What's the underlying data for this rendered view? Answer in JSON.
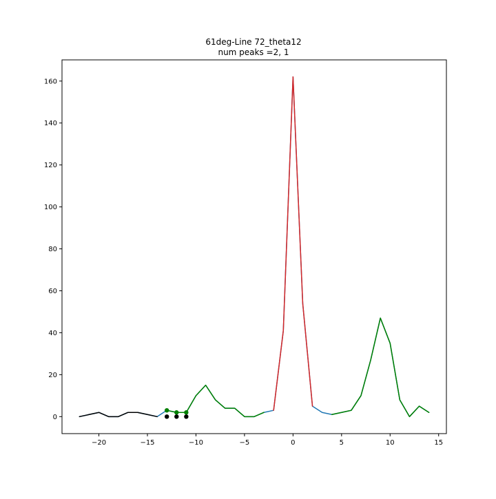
{
  "chart_data": {
    "type": "line",
    "title_lines": [
      "61deg-Line 72_theta12",
      "num peaks =2, 1"
    ],
    "xlabel": "",
    "ylabel": "",
    "xlim": [
      -23.8,
      15.8
    ],
    "ylim": [
      -8.1,
      170.1
    ],
    "x_ticks": [
      -20,
      -15,
      -10,
      -5,
      0,
      5,
      10,
      15
    ],
    "x_tick_labels": [
      "−20",
      "−15",
      "−10",
      "−5",
      "0",
      "5",
      "10",
      "15"
    ],
    "y_ticks": [
      0,
      20,
      40,
      60,
      80,
      100,
      120,
      140,
      160
    ],
    "y_tick_labels": [
      "0",
      "20",
      "40",
      "60",
      "80",
      "100",
      "120",
      "140",
      "160"
    ],
    "grid": false,
    "legend": "none",
    "series": [
      {
        "role": "full-signal",
        "color": "#1f77b4",
        "style": "line",
        "x": [
          -22,
          -21,
          -20,
          -19,
          -18,
          -17,
          -16,
          -15,
          -14,
          -13,
          -12,
          -11,
          -10,
          -9,
          -8,
          -7,
          -6,
          -5,
          -4,
          -3,
          -2,
          -1,
          0,
          1,
          2,
          3,
          4,
          5,
          6,
          7,
          8,
          9,
          10,
          11,
          12,
          13,
          14
        ],
        "y": [
          0,
          1,
          2,
          0,
          0,
          2,
          2,
          1,
          0,
          3,
          2,
          2,
          10,
          15,
          8,
          4,
          4,
          0,
          0,
          2,
          3,
          41,
          162,
          54,
          5,
          2,
          1,
          2,
          3,
          10,
          27,
          47,
          35,
          8,
          0,
          5,
          2
        ]
      },
      {
        "role": "background-left",
        "color": "#000000",
        "style": "line",
        "x": [
          -22,
          -21,
          -20,
          -19,
          -18,
          -17,
          -16,
          -15,
          -14
        ],
        "y": [
          0,
          1,
          2,
          0,
          0,
          2,
          2,
          1,
          0
        ]
      },
      {
        "role": "peak-region-left",
        "color": "#008000",
        "style": "line",
        "x": [
          -13,
          -12,
          -11
        ],
        "y": [
          3,
          2,
          2
        ]
      },
      {
        "role": "peak-region-left-b",
        "color": "#008000",
        "style": "line",
        "x": [
          -11,
          -10,
          -9,
          -8,
          -7,
          -6,
          -5,
          -4,
          -3
        ],
        "y": [
          2,
          10,
          15,
          8,
          4,
          4,
          0,
          0,
          2
        ]
      },
      {
        "role": "main-peak",
        "color": "#d62728",
        "style": "line",
        "x": [
          -2,
          -1,
          0,
          1,
          2
        ],
        "y": [
          3,
          41,
          162,
          54,
          5
        ]
      },
      {
        "role": "peak-region-right",
        "color": "#008000",
        "style": "line",
        "x": [
          4,
          5,
          6,
          7,
          8,
          9,
          10,
          11,
          12,
          13,
          14
        ],
        "y": [
          1,
          2,
          3,
          10,
          27,
          47,
          35,
          8,
          0,
          5,
          2
        ]
      },
      {
        "role": "green-markers",
        "color": "#008000",
        "style": "markers",
        "x": [
          -13,
          -12,
          -11
        ],
        "y": [
          3,
          2,
          2
        ]
      },
      {
        "role": "black-markers",
        "color": "#000000",
        "style": "markers",
        "x": [
          -13,
          -12,
          -11
        ],
        "y": [
          0,
          0,
          0
        ]
      }
    ]
  }
}
